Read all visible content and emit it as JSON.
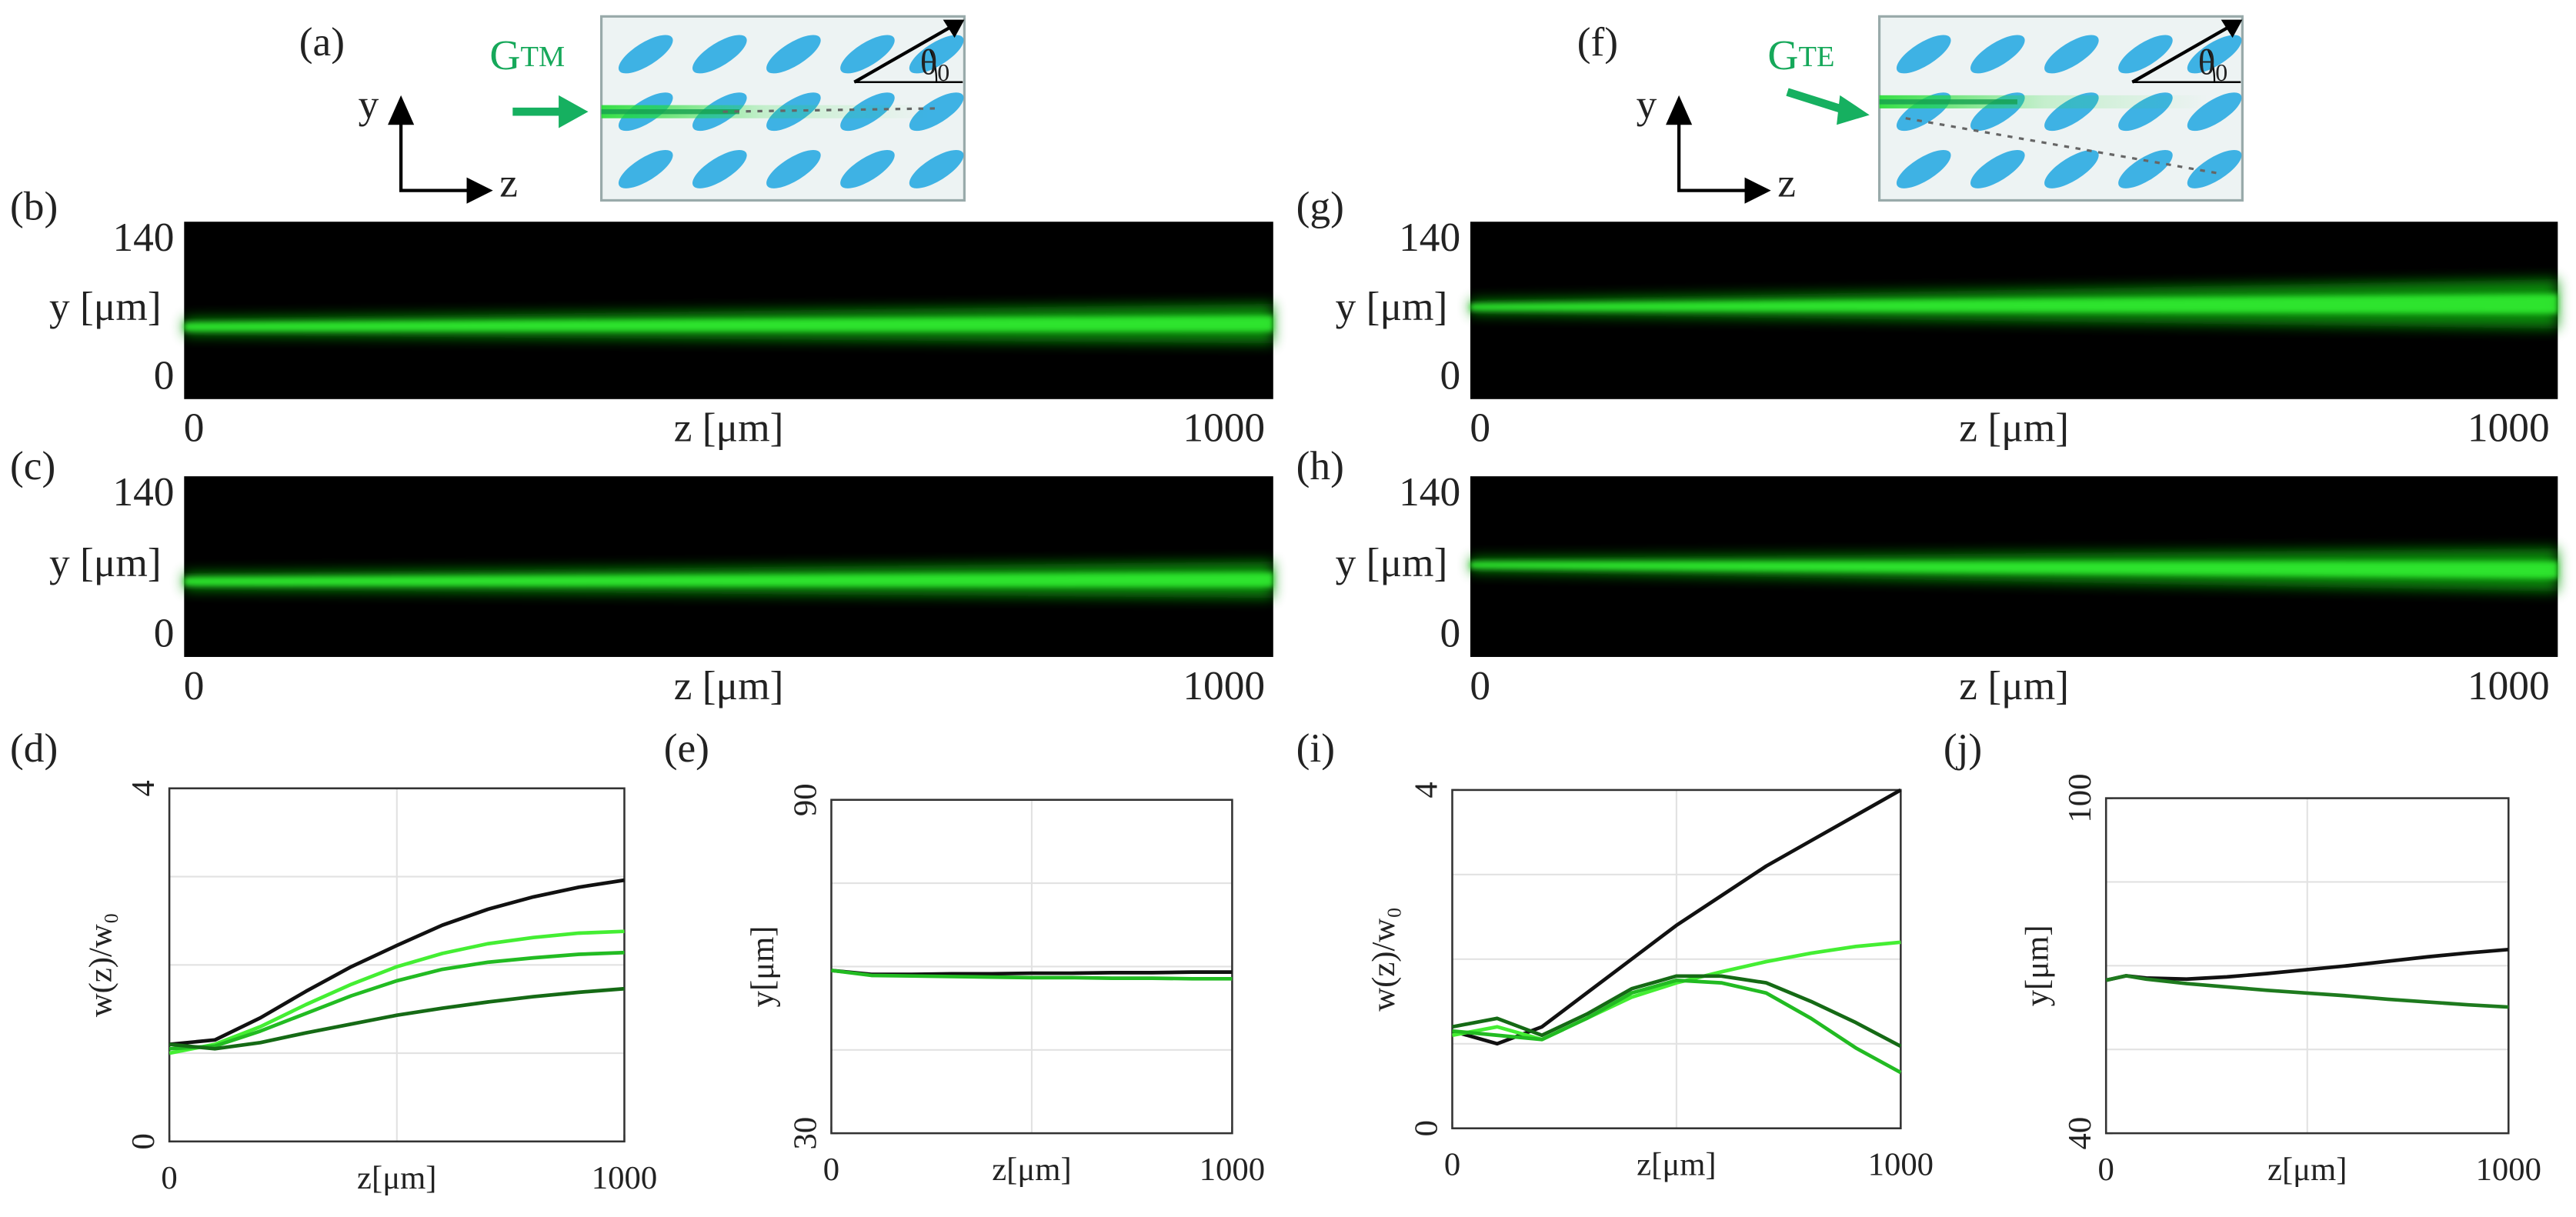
{
  "schematics": [
    {
      "panel": "(a)",
      "beam": "G",
      "beam_sub": "TM",
      "axis_y": "y",
      "axis_z": "z",
      "angle": "θ",
      "angle_sub": "0"
    },
    {
      "panel": "(f)",
      "beam": "G",
      "beam_sub": "TE",
      "axis_y": "y",
      "axis_z": "z",
      "angle": "θ",
      "angle_sub": "0"
    }
  ],
  "chart_data": [
    {
      "type": "image",
      "panel": "(b)",
      "xlabel": "z [μm]",
      "ylabel": "y [μm]",
      "xlim": [
        0,
        1000
      ],
      "xticks": [
        0,
        1000
      ],
      "ylim": [
        0,
        140
      ],
      "yticks": [
        0,
        140
      ]
    },
    {
      "type": "image",
      "panel": "(c)",
      "xlabel": "z [μm]",
      "ylabel": "y [μm]",
      "xlim": [
        0,
        1000
      ],
      "xticks": [
        0,
        1000
      ],
      "ylim": [
        0,
        140
      ],
      "yticks": [
        0,
        140
      ]
    },
    {
      "type": "image",
      "panel": "(g)",
      "xlabel": "z [μm]",
      "ylabel": "y [μm]",
      "xlim": [
        0,
        1000
      ],
      "xticks": [
        0,
        1000
      ],
      "ylim": [
        0,
        140
      ],
      "yticks": [
        0,
        140
      ]
    },
    {
      "type": "image",
      "panel": "(h)",
      "xlabel": "z [μm]",
      "ylabel": "y [μm]",
      "xlim": [
        0,
        1000
      ],
      "xticks": [
        0,
        1000
      ],
      "ylim": [
        0,
        140
      ],
      "yticks": [
        0,
        140
      ]
    },
    {
      "type": "line",
      "panel": "(d)",
      "xlabel": "z[μm]",
      "ylabel": "w(z)/w₀",
      "xlim": [
        0,
        1000
      ],
      "xticks": [
        0,
        1000
      ],
      "xgrid": [
        500
      ],
      "ylim": [
        0,
        4
      ],
      "yticks": [
        0,
        4
      ],
      "ygrid": [
        1,
        2,
        3
      ],
      "x": [
        0,
        100,
        200,
        300,
        400,
        500,
        600,
        700,
        800,
        900,
        1000
      ],
      "series": [
        {
          "color": "#111111",
          "values": [
            1.1,
            1.15,
            1.4,
            1.7,
            1.98,
            2.22,
            2.45,
            2.63,
            2.77,
            2.88,
            2.96
          ]
        },
        {
          "color": "#44ee33",
          "values": [
            1.0,
            1.1,
            1.3,
            1.55,
            1.78,
            1.98,
            2.13,
            2.24,
            2.31,
            2.36,
            2.38
          ]
        },
        {
          "color": "#22bb22",
          "values": [
            1.05,
            1.08,
            1.25,
            1.45,
            1.65,
            1.82,
            1.95,
            2.03,
            2.08,
            2.12,
            2.14
          ]
        },
        {
          "color": "#156a15",
          "values": [
            1.1,
            1.05,
            1.12,
            1.23,
            1.33,
            1.43,
            1.51,
            1.58,
            1.64,
            1.69,
            1.73
          ]
        }
      ]
    },
    {
      "type": "line",
      "panel": "(e)",
      "xlabel": "z[μm]",
      "ylabel": "y[μm]",
      "xlim": [
        0,
        1000
      ],
      "xticks": [
        0,
        1000
      ],
      "xgrid": [
        500
      ],
      "ylim": [
        30,
        90
      ],
      "yticks": [
        30,
        90
      ],
      "ygrid": [
        45,
        60,
        75
      ],
      "x": [
        0,
        100,
        200,
        300,
        400,
        500,
        600,
        700,
        800,
        900,
        1000
      ],
      "series": [
        {
          "color": "#111111",
          "values": [
            59.3,
            58.6,
            58.6,
            58.7,
            58.7,
            58.8,
            58.8,
            58.9,
            58.9,
            59.0,
            59.0
          ]
        },
        {
          "color": "#22bb22",
          "values": [
            59.3,
            58.4,
            58.3,
            58.2,
            58.1,
            58.0,
            58.0,
            57.9,
            57.9,
            57.8,
            57.8
          ]
        }
      ]
    },
    {
      "type": "line",
      "panel": "(i)",
      "xlabel": "z[μm]",
      "ylabel": "w(z)/w₀",
      "xlim": [
        0,
        1000
      ],
      "xticks": [
        0,
        1000
      ],
      "xgrid": [
        500
      ],
      "ylim": [
        0,
        4
      ],
      "yticks": [
        0,
        4
      ],
      "ygrid": [
        1,
        2,
        3
      ],
      "x": [
        0,
        100,
        200,
        300,
        400,
        500,
        600,
        700,
        800,
        900,
        1000
      ],
      "series": [
        {
          "color": "#111111",
          "values": [
            1.15,
            1.0,
            1.2,
            1.6,
            2.0,
            2.4,
            2.75,
            3.1,
            3.4,
            3.7,
            4.0
          ]
        },
        {
          "color": "#44ee33",
          "values": [
            1.1,
            1.2,
            1.05,
            1.3,
            1.55,
            1.72,
            1.85,
            1.97,
            2.07,
            2.15,
            2.2
          ]
        },
        {
          "color": "#22bb22",
          "values": [
            1.15,
            1.1,
            1.05,
            1.3,
            1.6,
            1.75,
            1.72,
            1.6,
            1.3,
            0.95,
            0.66
          ]
        },
        {
          "color": "#156a15",
          "values": [
            1.2,
            1.3,
            1.1,
            1.35,
            1.65,
            1.8,
            1.8,
            1.72,
            1.5,
            1.25,
            0.97
          ]
        }
      ]
    },
    {
      "type": "line",
      "panel": "(j)",
      "xlabel": "z[μm]",
      "ylabel": "y[μm]",
      "xlim": [
        0,
        1000
      ],
      "xticks": [
        0,
        1000
      ],
      "xgrid": [
        500
      ],
      "ylim": [
        40,
        100
      ],
      "yticks": [
        40,
        100
      ],
      "ygrid": [
        55,
        70,
        85
      ],
      "x": [
        0,
        50,
        100,
        200,
        300,
        400,
        500,
        600,
        700,
        800,
        900,
        1000
      ],
      "series": [
        {
          "color": "#111111",
          "values": [
            67.4,
            68.2,
            67.8,
            67.6,
            68.0,
            68.6,
            69.3,
            70.0,
            70.8,
            71.6,
            72.3,
            72.9
          ]
        },
        {
          "color": "#1e7a1e",
          "values": [
            67.4,
            68.2,
            67.6,
            66.8,
            66.2,
            65.6,
            65.1,
            64.6,
            64.0,
            63.5,
            63.0,
            62.6
          ]
        }
      ]
    }
  ]
}
